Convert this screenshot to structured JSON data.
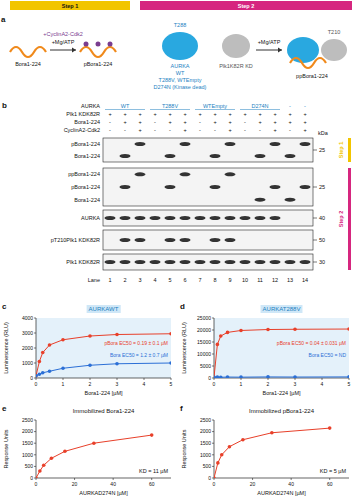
{
  "panel_a": {
    "letter": "a",
    "steps": [
      "Step 1",
      "Step 2"
    ],
    "labels": [
      "+CyclinA2-Cdk2",
      "+Mg/ATP",
      "Bora1-224",
      "pBora1-224",
      "AURKA",
      "WT",
      "T288V, WTEmpty",
      "D274N (Kinase dead)",
      "Plk1K82R KD",
      "+Mg/ATP",
      "ppBora1-224",
      "T288",
      "T210"
    ]
  },
  "panel_b": {
    "letter": "b",
    "conditions": [
      {
        "label": "AURKA",
        "lanes": [
          "WT",
          null,
          null,
          "T288V",
          null,
          null,
          "WTEmpty",
          null,
          null,
          "D274N",
          null,
          null,
          "-",
          "-"
        ]
      },
      {
        "label": "Plk1 KDK82R",
        "lanes": [
          "+",
          "+",
          "+",
          "+",
          "+",
          "+",
          "+",
          "+",
          "+",
          "+",
          "+",
          "+",
          "+",
          "+"
        ]
      },
      {
        "label": "Bora1-224",
        "lanes": [
          "-",
          "+",
          "+",
          "-",
          "+",
          "+",
          "-",
          "+",
          "+",
          "-",
          "+",
          "+",
          "+",
          "+"
        ]
      },
      {
        "label": "CyclinA2-Cdk2",
        "lanes": [
          "-",
          "-",
          "+",
          "-",
          "-",
          "+",
          "-",
          "-",
          "+",
          "-",
          "-",
          "+",
          "-",
          "+"
        ]
      }
    ],
    "kda_unit": "kDa",
    "blots": [
      {
        "step": "Step 1",
        "labels": [
          "pBora1-224",
          "Bora1-224"
        ],
        "kda": 25
      },
      {
        "step": "Step 2",
        "labels": [
          "ppBora1-224",
          "pBora1-224",
          "Bora1-224"
        ],
        "kda": 25
      },
      {
        "labels": [
          "AURKA"
        ],
        "kda": 40
      },
      {
        "labels": [
          "pT210Plk1 KDK82R"
        ],
        "kda": 50
      },
      {
        "labels": [
          "Plk1 KDK82R"
        ],
        "kda": 30
      }
    ],
    "lane_label": "Lane",
    "lane_numbers": [
      1,
      2,
      3,
      4,
      5,
      6,
      7,
      8,
      9,
      10,
      11,
      12,
      13,
      14
    ]
  },
  "chart_data": [
    {
      "type": "scatter",
      "panel_label": "c",
      "title": "AURKAWT",
      "x_label": "Bora1-224 [µM]",
      "y_label": "Luminescence (RLU)",
      "xlim": [
        0,
        5
      ],
      "xticks": [
        0,
        1,
        2,
        3,
        4,
        5
      ],
      "ylim": [
        0,
        4000
      ],
      "yticks": [
        0,
        1000,
        2000,
        3000,
        4000
      ],
      "x": [
        0,
        0.125,
        0.25,
        0.5,
        1,
        2,
        3,
        5
      ],
      "series": [
        {
          "name": "pBora EC50 = 0.19 ± 0.1 µM",
          "color": "#e8402a",
          "marker": "circle",
          "line_style": "solid",
          "values": [
            150,
            1100,
            1700,
            2200,
            2550,
            2800,
            2900,
            2950
          ]
        },
        {
          "name": "Bora EC50 = 1.2 ± 0.7 µM",
          "color": "#2b6fd6",
          "marker": "circle",
          "line_style": "solid",
          "values": [
            150,
            250,
            350,
            450,
            650,
            850,
            950,
            1000
          ]
        }
      ]
    },
    {
      "type": "scatter",
      "panel_label": "d",
      "title": "AURKAT288V",
      "x_label": "Bora1-224 [µM]",
      "y_label": "Luminescence (RLU)",
      "xlim": [
        0,
        5
      ],
      "xticks": [
        0,
        1,
        2,
        3,
        4,
        5
      ],
      "ylim": [
        0,
        25000
      ],
      "yticks": [
        0,
        5000,
        10000,
        15000,
        20000,
        25000
      ],
      "x": [
        0,
        0.125,
        0.25,
        0.5,
        1,
        2,
        3,
        5
      ],
      "series": [
        {
          "name": "pBora EC50 = 0.04 ± 0.031 µM",
          "color": "#e8402a",
          "marker": "circle",
          "line_style": "solid",
          "values": [
            300,
            14000,
            17500,
            19000,
            19800,
            20200,
            20300,
            20400
          ]
        },
        {
          "name": "Bora EC50 = ND",
          "color": "#2b6fd6",
          "marker": "circle",
          "line_style": "solid",
          "values": [
            300,
            350,
            300,
            400,
            350,
            450,
            400,
            450
          ]
        }
      ]
    },
    {
      "type": "scatter",
      "panel_label": "e",
      "title": "Immobilized Bora1-224",
      "x_label": "AURKAD274N [µM]",
      "y_label": "Response Units",
      "xlim": [
        0,
        70
      ],
      "xticks": [
        0,
        20,
        40,
        60
      ],
      "ylim": [
        0,
        2500
      ],
      "yticks": [
        0,
        500,
        1000,
        1500,
        2000,
        2500
      ],
      "x": [
        0,
        2,
        4,
        8,
        15,
        30,
        60
      ],
      "series": [
        {
          "color": "#e8402a",
          "marker": "circle",
          "line_style": "solid",
          "values": [
            0,
            300,
            550,
            850,
            1150,
            1500,
            1850
          ]
        }
      ],
      "annotations": [
        "KD = 11 µM"
      ]
    },
    {
      "type": "scatter",
      "panel_label": "f",
      "title": "Immobilized pBora1-224",
      "x_label": "AURKAD274N [µM]",
      "y_label": "Response Units",
      "xlim": [
        0,
        70
      ],
      "xticks": [
        0,
        20,
        40,
        60
      ],
      "ylim": [
        0,
        2500
      ],
      "yticks": [
        0,
        500,
        1000,
        1500,
        2000,
        2500
      ],
      "x": [
        0,
        2,
        4,
        8,
        15,
        30,
        60
      ],
      "series": [
        {
          "color": "#e8402a",
          "marker": "circle",
          "line_style": "solid",
          "values": [
            0,
            650,
            1000,
            1350,
            1650,
            1950,
            2150
          ]
        }
      ],
      "annotations": [
        "KD = 5 µM"
      ]
    }
  ]
}
